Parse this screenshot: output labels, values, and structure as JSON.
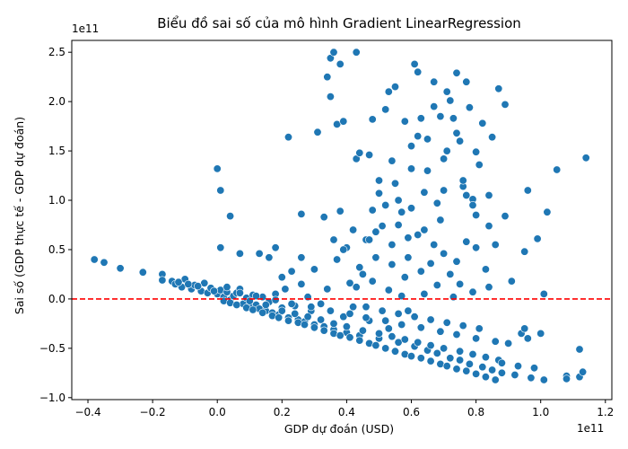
{
  "chart_data": {
    "type": "scatter",
    "title": "Biểu đồ sai số của mô hình Gradient LinearRegression",
    "xlabel": "GDP dự đoán (USD)",
    "ylabel": "Sai số (GDP thực tế - GDP dự đoán)",
    "x_offset_label": "1e11",
    "y_offset_label": "1e11",
    "xlim": [
      -0.45,
      1.22
    ],
    "ylim": [
      -1.02,
      2.62
    ],
    "x_ticks": [
      -0.4,
      -0.2,
      0.0,
      0.2,
      0.4,
      0.6,
      0.8,
      1.0,
      1.2
    ],
    "x_tick_labels": [
      "−0.4",
      "−0.2",
      "0.0",
      "0.2",
      "0.4",
      "0.6",
      "0.8",
      "1.0",
      "1.2"
    ],
    "y_ticks": [
      -1.0,
      -0.5,
      0.0,
      0.5,
      1.0,
      1.5,
      2.0,
      2.5
    ],
    "y_tick_labels": [
      "−1.0",
      "−0.5",
      "0.0",
      "0.5",
      "1.0",
      "1.5",
      "2.0",
      "2.5"
    ],
    "point_color": "#1f77b4",
    "reference_line": {
      "y": 0,
      "color": "#ff0000",
      "style": "dashed"
    },
    "grid": false,
    "points": [
      [
        -0.38,
        0.4
      ],
      [
        -0.35,
        0.37
      ],
      [
        -0.3,
        0.31
      ],
      [
        -0.23,
        0.27
      ],
      [
        -0.17,
        0.25
      ],
      [
        -0.17,
        0.19
      ],
      [
        -0.14,
        0.18
      ],
      [
        -0.13,
        0.15
      ],
      [
        -0.11,
        0.12
      ],
      [
        -0.1,
        0.2
      ],
      [
        -0.08,
        0.1
      ],
      [
        -0.07,
        0.14
      ],
      [
        -0.05,
        0.08
      ],
      [
        -0.04,
        0.16
      ],
      [
        -0.03,
        0.06
      ],
      [
        -0.02,
        0.11
      ],
      [
        0.0,
        0.05
      ],
      [
        0.01,
        0.09
      ],
      [
        0.02,
        0.02
      ],
      [
        0.03,
        0.07
      ],
      [
        0.04,
        -0.01
      ],
      [
        0.05,
        0.03
      ],
      [
        0.06,
        0.06
      ],
      [
        0.07,
        0.1
      ],
      [
        0.08,
        -0.05
      ],
      [
        0.09,
        0.01
      ],
      [
        0.1,
        -0.08
      ],
      [
        0.11,
        0.04
      ],
      [
        0.12,
        -0.06
      ],
      [
        0.13,
        0.46
      ],
      [
        0.13,
        -0.1
      ],
      [
        0.14,
        0.02
      ],
      [
        0.15,
        -0.12
      ],
      [
        0.16,
        0.42
      ],
      [
        0.16,
        -0.03
      ],
      [
        0.17,
        -0.14
      ],
      [
        0.18,
        0.05
      ],
      [
        0.19,
        -0.16
      ],
      [
        0.2,
        0.22
      ],
      [
        0.2,
        -0.09
      ],
      [
        0.21,
        0.1
      ],
      [
        0.22,
        1.64
      ],
      [
        0.22,
        -0.19
      ],
      [
        0.23,
        0.28
      ],
      [
        0.24,
        -0.07
      ],
      [
        0.25,
        -0.21
      ],
      [
        0.26,
        0.86
      ],
      [
        0.26,
        0.15
      ],
      [
        0.27,
        -0.23
      ],
      [
        0.28,
        0.02
      ],
      [
        0.29,
        -0.12
      ],
      [
        0.3,
        -0.26
      ],
      [
        0.3,
        0.3
      ],
      [
        0.31,
        1.69
      ],
      [
        0.32,
        -0.05
      ],
      [
        0.33,
        0.83
      ],
      [
        0.33,
        -0.28
      ],
      [
        0.34,
        2.25
      ],
      [
        0.34,
        0.1
      ],
      [
        0.35,
        2.05
      ],
      [
        0.35,
        2.44
      ],
      [
        0.36,
        2.5
      ],
      [
        0.36,
        -0.31
      ],
      [
        0.37,
        1.77
      ],
      [
        0.37,
        0.4
      ],
      [
        0.38,
        0.89
      ],
      [
        0.38,
        2.38
      ],
      [
        0.39,
        -0.18
      ],
      [
        0.39,
        1.8
      ],
      [
        0.4,
        0.52
      ],
      [
        0.4,
        -0.34
      ],
      [
        0.41,
        0.16
      ],
      [
        0.42,
        -0.08
      ],
      [
        0.43,
        2.5
      ],
      [
        0.43,
        1.42
      ],
      [
        0.44,
        1.48
      ],
      [
        0.44,
        -0.37
      ],
      [
        0.45,
        0.25
      ],
      [
        0.46,
        0.6
      ],
      [
        0.47,
        1.46
      ],
      [
        0.47,
        -0.22
      ],
      [
        0.48,
        0.9
      ],
      [
        0.48,
        1.82
      ],
      [
        0.49,
        0.42
      ],
      [
        0.5,
        -0.4
      ],
      [
        0.5,
        1.07
      ],
      [
        0.51,
        0.74
      ],
      [
        0.52,
        1.92
      ],
      [
        0.53,
        2.1
      ],
      [
        0.53,
        -0.3
      ],
      [
        0.54,
        0.35
      ],
      [
        0.54,
        1.4
      ],
      [
        0.55,
        2.15
      ],
      [
        0.55,
        1.17
      ],
      [
        0.56,
        -0.44
      ],
      [
        0.56,
        0.75
      ],
      [
        0.57,
        0.03
      ],
      [
        0.58,
        1.8
      ],
      [
        0.59,
        -0.12
      ],
      [
        0.59,
        0.62
      ],
      [
        0.6,
        1.32
      ],
      [
        0.61,
        2.38
      ],
      [
        0.61,
        -0.48
      ],
      [
        0.62,
        2.3
      ],
      [
        0.62,
        1.65
      ],
      [
        0.63,
        1.83
      ],
      [
        0.63,
        0.28
      ],
      [
        0.64,
        1.08
      ],
      [
        0.65,
        -0.52
      ],
      [
        0.65,
        1.62
      ],
      [
        0.66,
        0.36
      ],
      [
        0.67,
        2.2
      ],
      [
        0.67,
        1.95
      ],
      [
        0.68,
        0.97
      ],
      [
        0.68,
        -0.55
      ],
      [
        0.69,
        1.85
      ],
      [
        0.7,
        1.42
      ],
      [
        0.7,
        0.46
      ],
      [
        0.71,
        1.5
      ],
      [
        0.72,
        2.01
      ],
      [
        0.72,
        -0.6
      ],
      [
        0.73,
        1.83
      ],
      [
        0.74,
        2.29
      ],
      [
        0.74,
        1.68
      ],
      [
        0.75,
        0.15
      ],
      [
        0.75,
        -0.62
      ],
      [
        0.76,
        1.14
      ],
      [
        0.77,
        2.2
      ],
      [
        0.77,
        0.58
      ],
      [
        0.78,
        1.94
      ],
      [
        0.78,
        -0.66
      ],
      [
        0.79,
        1.01
      ],
      [
        0.8,
        1.49
      ],
      [
        0.8,
        0.52
      ],
      [
        0.81,
        1.36
      ],
      [
        0.82,
        1.78
      ],
      [
        0.82,
        -0.69
      ],
      [
        0.83,
        0.3
      ],
      [
        0.84,
        0.74
      ],
      [
        0.85,
        -0.72
      ],
      [
        0.85,
        1.64
      ],
      [
        0.86,
        0.55
      ],
      [
        0.87,
        2.13
      ],
      [
        0.88,
        -0.75
      ],
      [
        0.89,
        1.97
      ],
      [
        0.89,
        0.84
      ],
      [
        0.9,
        -0.45
      ],
      [
        0.91,
        0.18
      ],
      [
        0.92,
        -0.77
      ],
      [
        0.94,
        -0.35
      ],
      [
        0.95,
        0.48
      ],
      [
        0.96,
        1.1
      ],
      [
        0.97,
        -0.8
      ],
      [
        0.98,
        -0.7
      ],
      [
        0.99,
        0.61
      ],
      [
        1.0,
        -0.35
      ],
      [
        1.01,
        0.05
      ],
      [
        1.01,
        -0.82
      ],
      [
        1.02,
        0.88
      ],
      [
        1.05,
        1.31
      ],
      [
        1.08,
        -0.78
      ],
      [
        1.08,
        -0.81
      ],
      [
        1.12,
        -0.51
      ],
      [
        1.12,
        -0.79
      ],
      [
        1.13,
        -0.74
      ],
      [
        1.14,
        1.43
      ],
      [
        0.02,
        -0.02
      ],
      [
        0.04,
        -0.04
      ],
      [
        0.06,
        -0.06
      ],
      [
        0.09,
        -0.09
      ],
      [
        0.11,
        -0.11
      ],
      [
        0.14,
        -0.14
      ],
      [
        0.17,
        -0.17
      ],
      [
        0.19,
        -0.19
      ],
      [
        0.22,
        -0.22
      ],
      [
        0.25,
        -0.24
      ],
      [
        0.27,
        -0.26
      ],
      [
        0.3,
        -0.29
      ],
      [
        0.33,
        -0.32
      ],
      [
        0.36,
        -0.35
      ],
      [
        0.38,
        -0.37
      ],
      [
        0.41,
        -0.39
      ],
      [
        0.44,
        -0.42
      ],
      [
        0.47,
        -0.45
      ],
      [
        0.49,
        -0.47
      ],
      [
        0.52,
        -0.5
      ],
      [
        0.55,
        -0.53
      ],
      [
        0.58,
        -0.56
      ],
      [
        0.6,
        -0.58
      ],
      [
        0.63,
        -0.6
      ],
      [
        0.66,
        -0.63
      ],
      [
        0.69,
        -0.66
      ],
      [
        0.71,
        -0.68
      ],
      [
        0.74,
        -0.71
      ],
      [
        0.77,
        -0.73
      ],
      [
        0.8,
        -0.76
      ],
      [
        0.83,
        -0.79
      ],
      [
        0.86,
        -0.82
      ],
      [
        0.1,
        -0.02
      ],
      [
        0.15,
        -0.06
      ],
      [
        0.2,
        -0.12
      ],
      [
        0.24,
        -0.15
      ],
      [
        0.28,
        -0.18
      ],
      [
        0.32,
        -0.21
      ],
      [
        0.36,
        -0.25
      ],
      [
        0.4,
        -0.28
      ],
      [
        0.45,
        -0.32
      ],
      [
        0.5,
        -0.35
      ],
      [
        0.54,
        -0.38
      ],
      [
        0.58,
        -0.41
      ],
      [
        0.62,
        -0.44
      ],
      [
        0.66,
        -0.47
      ],
      [
        0.7,
        -0.5
      ],
      [
        0.75,
        -0.53
      ],
      [
        0.79,
        -0.56
      ],
      [
        0.83,
        -0.59
      ],
      [
        0.87,
        -0.62
      ],
      [
        0.12,
        0.03
      ],
      [
        0.18,
        -0.01
      ],
      [
        0.23,
        -0.05
      ],
      [
        0.29,
        -0.08
      ],
      [
        0.35,
        -0.12
      ],
      [
        0.41,
        -0.15
      ],
      [
        0.46,
        -0.19
      ],
      [
        0.52,
        -0.22
      ],
      [
        0.57,
        -0.26
      ],
      [
        0.63,
        -0.29
      ],
      [
        0.69,
        -0.33
      ],
      [
        0.74,
        -0.36
      ],
      [
        0.8,
        -0.4
      ],
      [
        0.86,
        -0.43
      ],
      [
        0.43,
        0.12
      ],
      [
        0.48,
        0.18
      ],
      [
        0.53,
        0.09
      ],
      [
        0.58,
        0.22
      ],
      [
        0.64,
        0.05
      ],
      [
        0.68,
        0.14
      ],
      [
        0.73,
        0.02
      ],
      [
        0.79,
        0.07
      ],
      [
        0.84,
        0.12
      ],
      [
        0.46,
        -0.08
      ],
      [
        0.51,
        -0.12
      ],
      [
        0.56,
        -0.15
      ],
      [
        0.61,
        -0.18
      ],
      [
        0.66,
        -0.21
      ],
      [
        0.71,
        -0.24
      ],
      [
        0.76,
        -0.27
      ],
      [
        0.81,
        -0.3
      ],
      [
        0.39,
        0.5
      ],
      [
        0.44,
        0.32
      ],
      [
        0.49,
        0.68
      ],
      [
        0.54,
        0.55
      ],
      [
        0.59,
        0.42
      ],
      [
        0.64,
        0.7
      ],
      [
        0.69,
        0.8
      ],
      [
        0.74,
        0.38
      ],
      [
        0.79,
        0.95
      ],
      [
        0.47,
        0.6
      ],
      [
        0.52,
        0.95
      ],
      [
        0.57,
        0.88
      ],
      [
        0.62,
        0.65
      ],
      [
        0.67,
        0.55
      ],
      [
        0.72,
        0.25
      ],
      [
        0.77,
        1.05
      ],
      [
        0.5,
        1.2
      ],
      [
        0.6,
        0.92
      ],
      [
        0.7,
        1.1
      ],
      [
        0.8,
        0.85
      ],
      [
        -0.06,
        0.13
      ],
      [
        -0.01,
        0.08
      ],
      [
        0.03,
        0.12
      ],
      [
        0.07,
        0.06
      ],
      [
        -0.12,
        0.17
      ],
      [
        -0.09,
        0.15
      ],
      [
        0.0,
        1.32
      ],
      [
        0.01,
        1.1
      ],
      [
        0.04,
        0.84
      ],
      [
        0.01,
        0.52
      ],
      [
        0.07,
        0.46
      ],
      [
        0.18,
        0.52
      ],
      [
        0.26,
        0.42
      ],
      [
        0.36,
        0.6
      ],
      [
        0.42,
        0.7
      ],
      [
        0.56,
        1.0
      ],
      [
        0.65,
        1.3
      ],
      [
        0.75,
        1.6
      ],
      [
        0.84,
        1.05
      ],
      [
        0.76,
        1.2
      ],
      [
        0.71,
        2.1
      ],
      [
        0.6,
        1.55
      ],
      [
        0.88,
        -0.65
      ],
      [
        0.93,
        -0.68
      ],
      [
        0.95,
        -0.3
      ],
      [
        0.96,
        -0.4
      ]
    ]
  }
}
